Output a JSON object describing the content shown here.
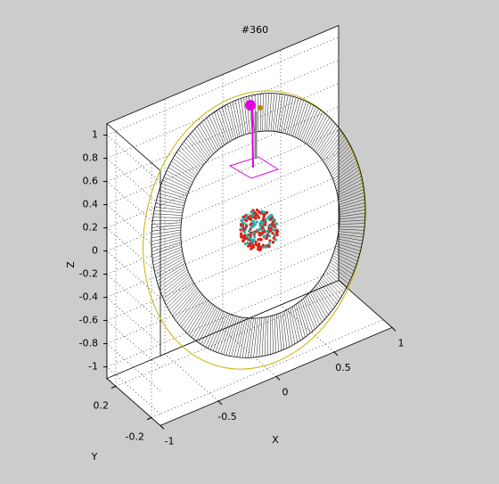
{
  "chart_data": {
    "type": "box3d",
    "title": "#360",
    "xlabel": "X",
    "ylabel": "Y",
    "zlabel": "Z",
    "xlim": [
      -1,
      1
    ],
    "xticks": [
      -1,
      -0.5,
      0,
      0.5,
      1
    ],
    "ylim": [
      -0.3,
      0.3
    ],
    "yticks": [
      -0.2,
      0.2
    ],
    "zlim": [
      -1.1,
      1.1
    ],
    "zticks": [
      -1,
      -0.8,
      -0.6,
      -0.4,
      -0.2,
      0,
      0.2,
      0.4,
      0.6,
      0.8,
      1
    ],
    "grid": true
  }
}
